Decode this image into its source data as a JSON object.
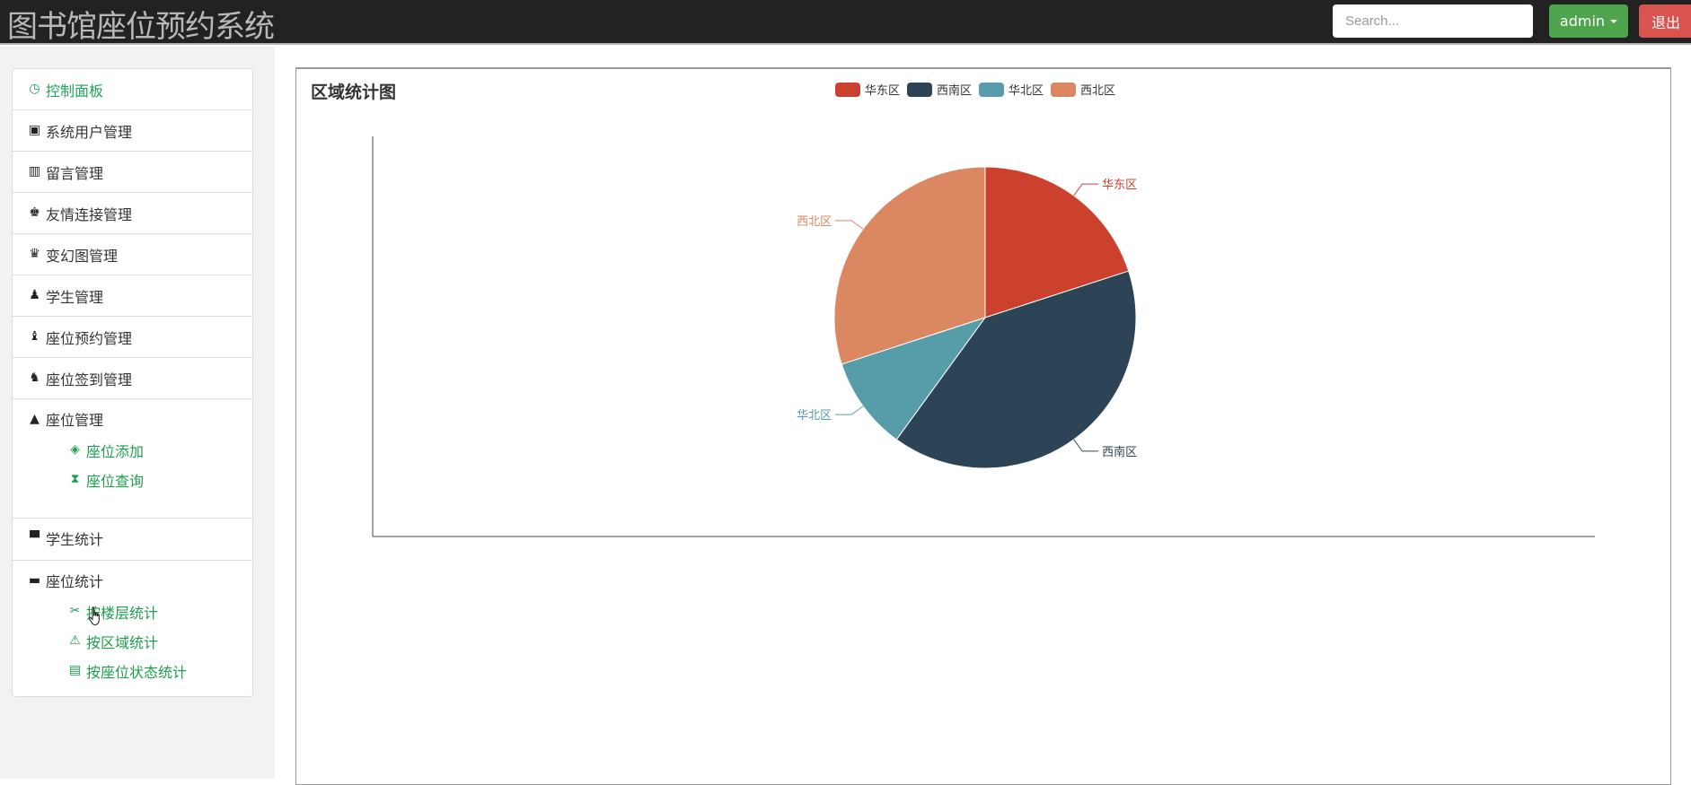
{
  "header": {
    "title": "图书馆座位预约系统",
    "search_placeholder": "Search...",
    "user_label": "admin",
    "logout_label": "退出"
  },
  "sidebar": {
    "items": [
      {
        "label": "控制面板",
        "icon": "dashboard-icon",
        "active": true
      },
      {
        "label": "系统用户管理",
        "icon": "picture-icon"
      },
      {
        "label": "留言管理",
        "icon": "equalizer-icon"
      },
      {
        "label": "友情连接管理",
        "icon": "king-icon"
      },
      {
        "label": "变幻图管理",
        "icon": "queen-icon"
      },
      {
        "label": "学生管理",
        "icon": "pawn-icon"
      },
      {
        "label": "座位预约管理",
        "icon": "bishop-icon"
      },
      {
        "label": "座位签到管理",
        "icon": "knight-icon"
      }
    ],
    "groups": [
      {
        "label": "座位管理",
        "icon": "tent-icon",
        "children": [
          {
            "label": "座位添加",
            "icon": "erase-icon"
          },
          {
            "label": "座位查询",
            "icon": "hourglass-icon"
          }
        ]
      },
      {
        "label": "学生统计",
        "icon": "blackboard-icon",
        "children": []
      },
      {
        "label": "座位统计",
        "icon": "bed-icon",
        "children": [
          {
            "label": "按楼层统计",
            "icon": "scissors-icon"
          },
          {
            "label": "按区域统计",
            "icon": "warning-icon"
          },
          {
            "label": "按座位状态统计",
            "icon": "clipboard-icon"
          }
        ]
      }
    ]
  },
  "chart_data": {
    "type": "pie",
    "title": "区域统计图",
    "legend_position": "top-center",
    "categories": [
      "华东区",
      "西南区",
      "华北区",
      "西北区"
    ],
    "values": [
      20,
      40,
      10,
      30
    ],
    "colors": [
      "#cc412e",
      "#2d4457",
      "#579ca9",
      "#db8761"
    ]
  }
}
